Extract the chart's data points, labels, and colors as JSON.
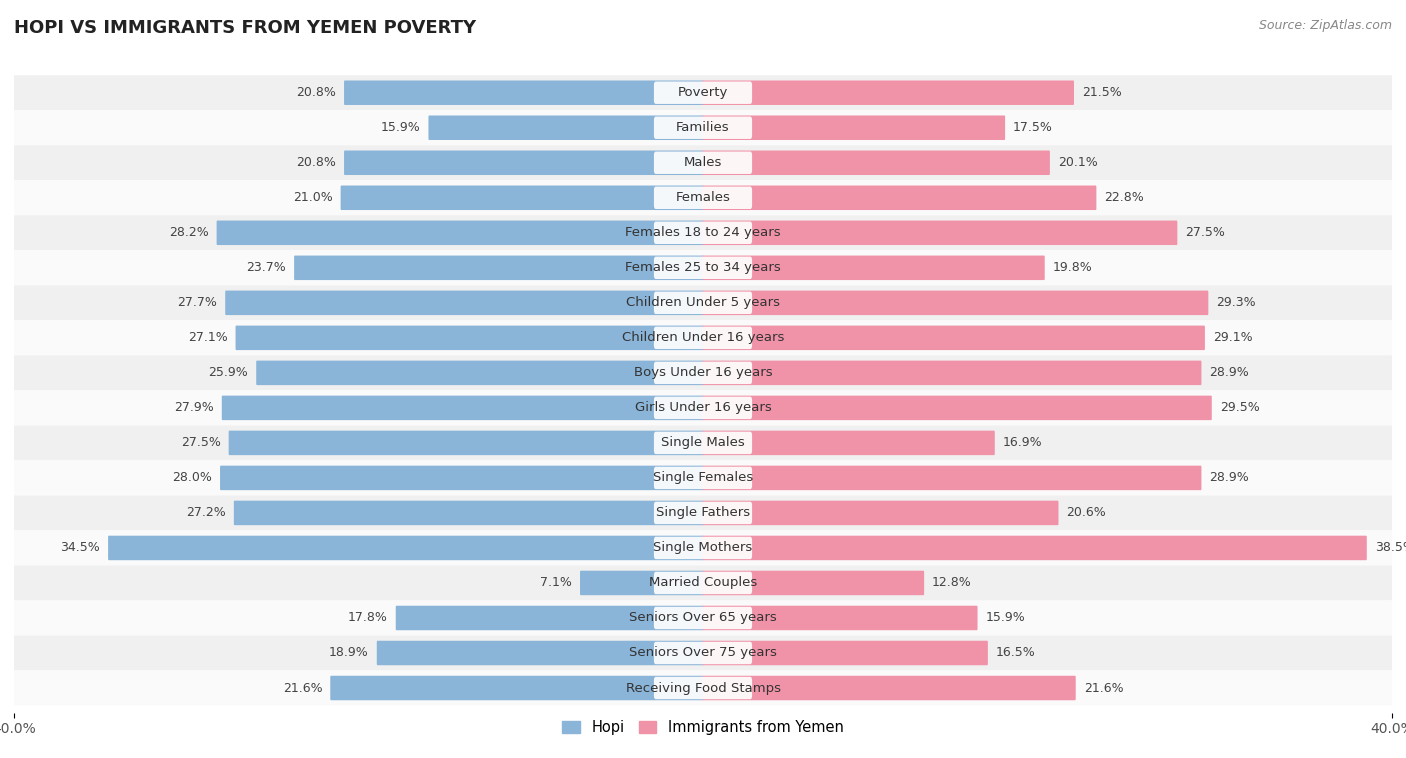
{
  "title": "HOPI VS IMMIGRANTS FROM YEMEN POVERTY",
  "source": "Source: ZipAtlas.com",
  "categories": [
    "Poverty",
    "Families",
    "Males",
    "Females",
    "Females 18 to 24 years",
    "Females 25 to 34 years",
    "Children Under 5 years",
    "Children Under 16 years",
    "Boys Under 16 years",
    "Girls Under 16 years",
    "Single Males",
    "Single Females",
    "Single Fathers",
    "Single Mothers",
    "Married Couples",
    "Seniors Over 65 years",
    "Seniors Over 75 years",
    "Receiving Food Stamps"
  ],
  "hopi": [
    20.8,
    15.9,
    20.8,
    21.0,
    28.2,
    23.7,
    27.7,
    27.1,
    25.9,
    27.9,
    27.5,
    28.0,
    27.2,
    34.5,
    7.1,
    17.8,
    18.9,
    21.6
  ],
  "yemen": [
    21.5,
    17.5,
    20.1,
    22.8,
    27.5,
    19.8,
    29.3,
    29.1,
    28.9,
    29.5,
    16.9,
    28.9,
    20.6,
    38.5,
    12.8,
    15.9,
    16.5,
    21.6
  ],
  "hopi_color": "#8ab4d8",
  "yemen_color": "#f093a8",
  "row_color_even": "#f0f0f0",
  "row_color_odd": "#fafafa",
  "background_color": "#ffffff",
  "xlim": 40.0,
  "bar_height": 0.62,
  "value_fontsize": 9.0,
  "label_fontsize": 9.5,
  "legend_labels": [
    "Hopi",
    "Immigrants from Yemen"
  ],
  "title_fontsize": 13,
  "source_fontsize": 9
}
